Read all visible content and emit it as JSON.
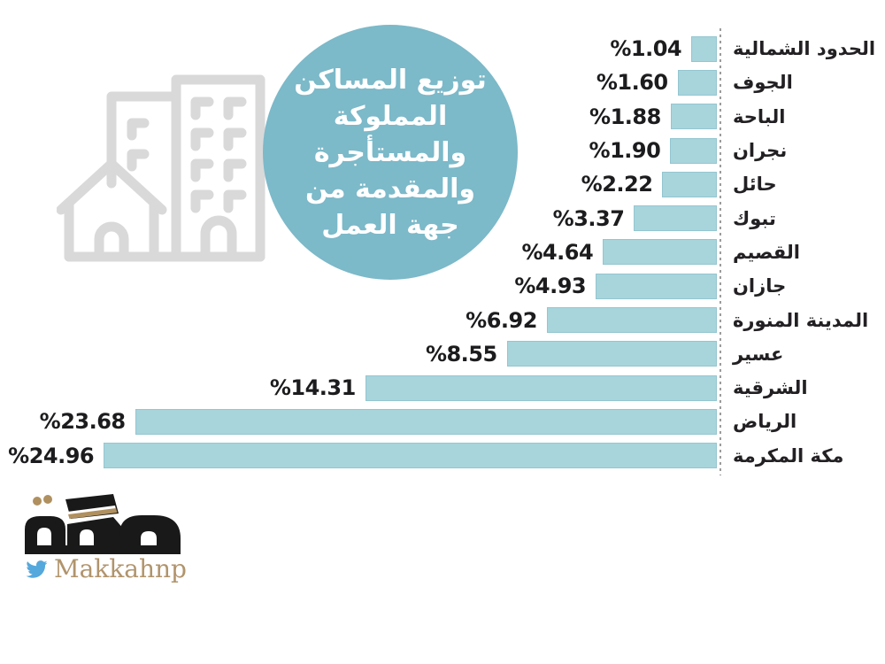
{
  "title_circle": {
    "lines": [
      "توزيع المساكن",
      "المملوكة",
      "والمستأجرة",
      "والمقدمة من",
      "جهة العمل"
    ],
    "full_text": "توزيع المساكن المملوكة والمستأجرة والمقدمة من جهة العمل"
  },
  "chart_data": {
    "type": "bar",
    "orientation": "horizontal",
    "direction": "rtl-bars-grow-left",
    "title": "توزيع المساكن المملوكة والمستأجرة والمقدمة من جهة العمل",
    "unit": "%",
    "xlim": [
      0,
      25
    ],
    "grid": false,
    "legend": false,
    "bar_color": "#a8d4dc",
    "categories": [
      "الحدود الشمالية",
      "الجوف",
      "الباحة",
      "نجران",
      "حائل",
      "تبوك",
      "القصيم",
      "جازان",
      "المدينة المنورة",
      "عسير",
      "الشرقية",
      "الرياض",
      "مكة المكرمة"
    ],
    "values": [
      1.04,
      1.6,
      1.88,
      1.9,
      2.22,
      3.37,
      4.64,
      4.93,
      6.92,
      8.55,
      14.31,
      23.68,
      24.96
    ],
    "value_labels": [
      "%1.04",
      "%1.60",
      "%1.88",
      "%1.90",
      "%2.22",
      "%3.37",
      "%4.64",
      "%4.93",
      "%6.92",
      "%8.55",
      "%14.31",
      "%23.68",
      "%24.96"
    ]
  },
  "footer": {
    "logo_text": "مكة",
    "twitter_handle": "Makkahnp"
  },
  "icons": {
    "background": "buildings-house-icon",
    "logo": "kaaba-makkah-logo-icon",
    "social": "twitter-icon"
  },
  "colors": {
    "circle_teal": "#7cb9c9",
    "bar_fill": "#a8d4dc",
    "bar_border": "#94c6d0",
    "text_dark": "#1c1c1e",
    "icon_gray": "#d9d9d9",
    "dash_gray": "#9c9c9c",
    "logo_black": "#191919",
    "logo_gold": "#b0905f",
    "twitter_blue": "#55a8dc",
    "handle_tan": "#b1946c"
  }
}
